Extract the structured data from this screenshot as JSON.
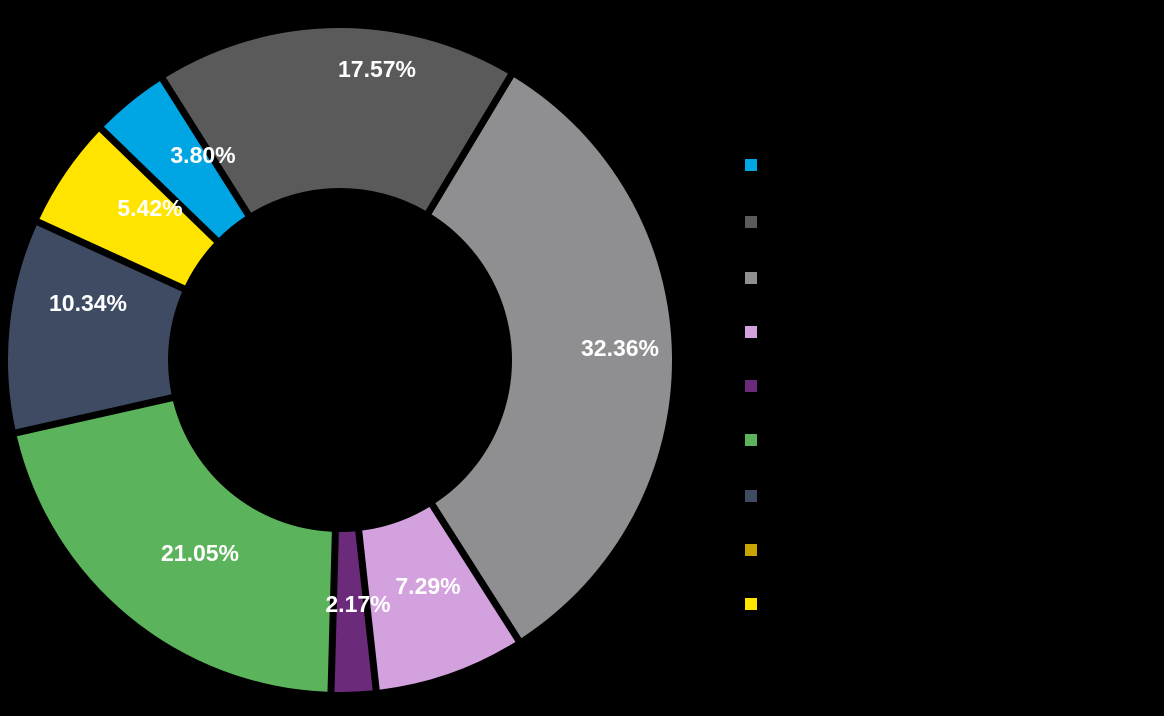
{
  "chart_data": {
    "type": "pie",
    "subtype": "donut",
    "title": "",
    "legend_title": "",
    "legend_position": "right",
    "slices": [
      {
        "label": "",
        "value": 32.36,
        "display": "32.36%",
        "color": "#8f8f91"
      },
      {
        "label": "",
        "value": 7.29,
        "display": "7.29%",
        "color": "#d3a1dd"
      },
      {
        "label": "",
        "value": 2.17,
        "display": "2.17%",
        "color": "#6b2a7a"
      },
      {
        "label": "",
        "value": 21.05,
        "display": "21.05%",
        "color": "#5bb45b"
      },
      {
        "label": "",
        "value": 10.34,
        "display": "10.34%",
        "color": "#3e4b63"
      },
      {
        "label": "",
        "value": 5.42,
        "display": "5.42%",
        "color": "#ffe400"
      },
      {
        "label": "",
        "value": 3.8,
        "display": "3.80%",
        "color": "#00a6e4"
      },
      {
        "label": "",
        "value": 17.57,
        "display": "17.57%",
        "color": "#5a5a5a"
      }
    ],
    "legend": [
      {
        "label": "",
        "color": "#00a6e4"
      },
      {
        "label": "",
        "color": "#5a5a5a"
      },
      {
        "label": "",
        "color": "#8f8f91"
      },
      {
        "label": "",
        "color": "#d3a1dd"
      },
      {
        "label": "",
        "color": "#6b2a7a"
      },
      {
        "label": "",
        "color": "#5bb45b"
      },
      {
        "label": "",
        "color": "#3e4b63"
      },
      {
        "label": "",
        "color": "#c9a400"
      },
      {
        "label": "",
        "color": "#ffe400"
      }
    ]
  }
}
